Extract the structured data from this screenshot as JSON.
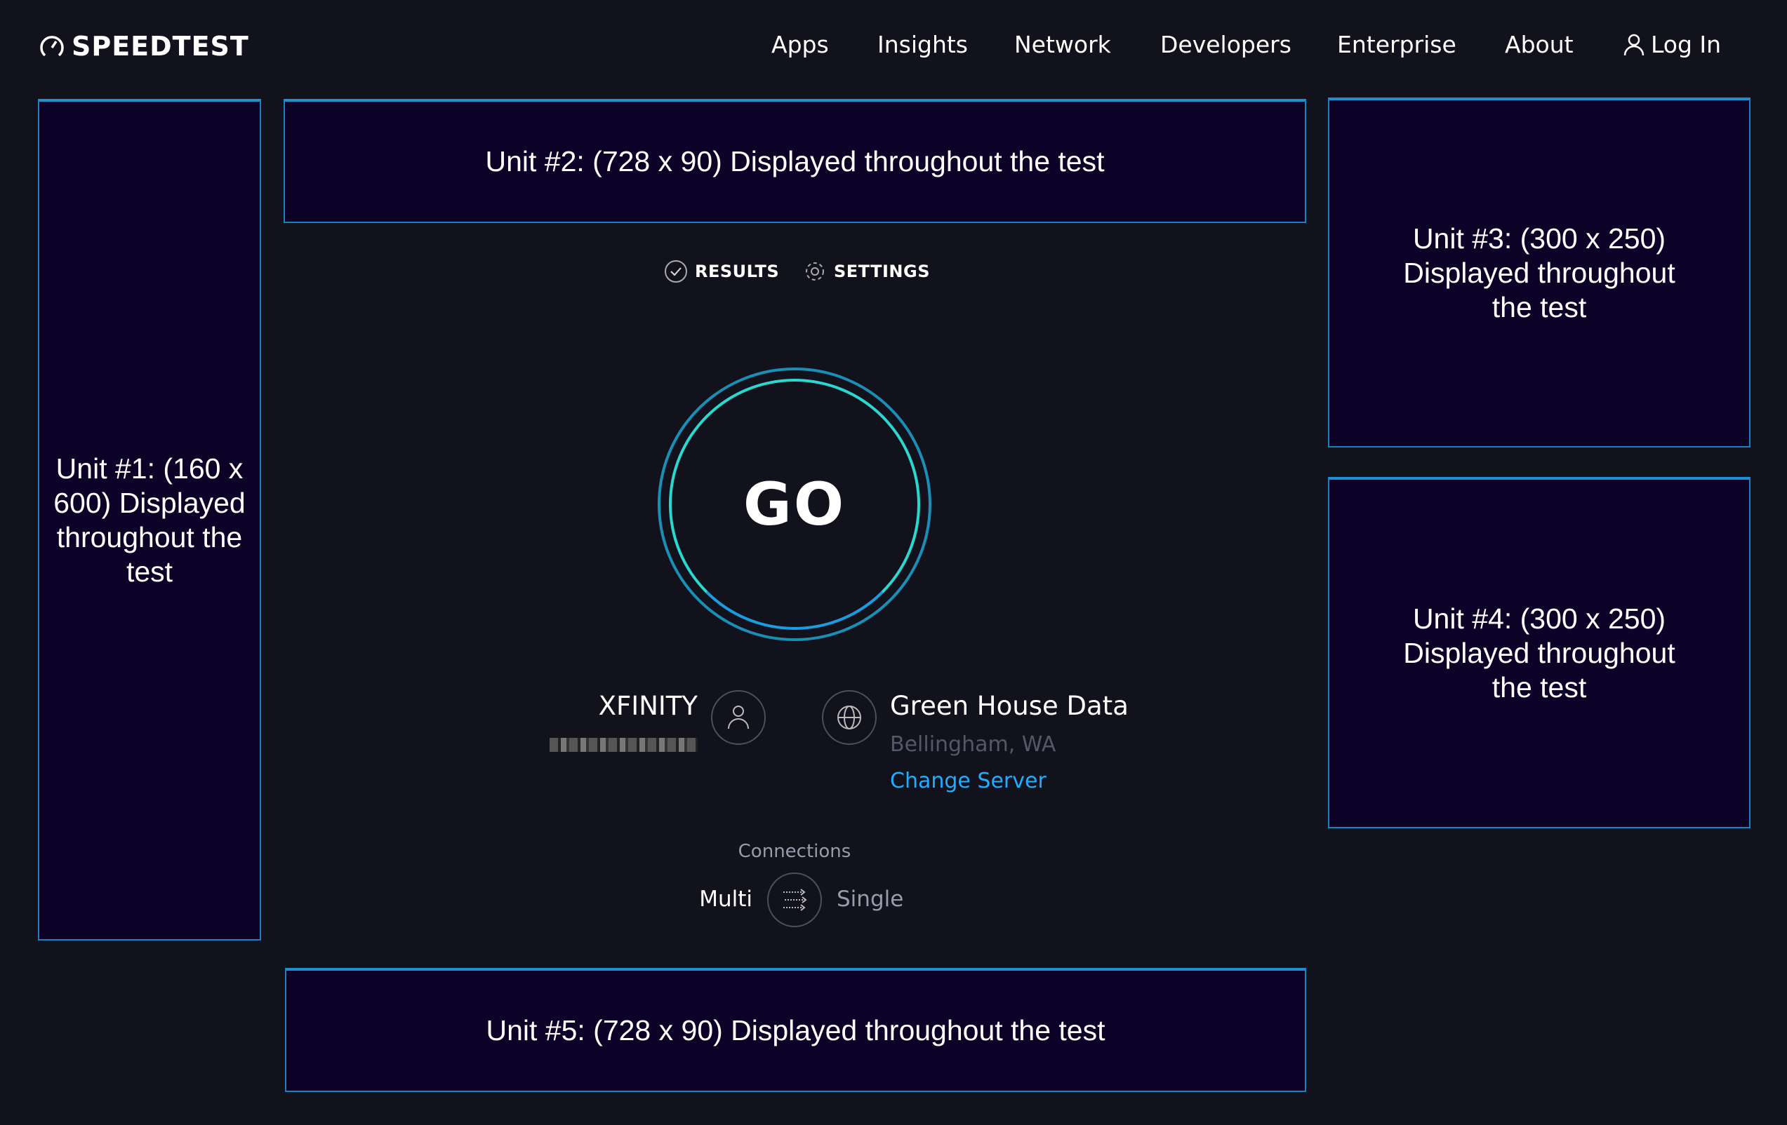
{
  "header": {
    "logo": "SPEEDTEST",
    "nav": [
      "Apps",
      "Insights",
      "Network",
      "Developers",
      "Enterprise",
      "About"
    ],
    "login": "Log In"
  },
  "ads": {
    "unit1": "Unit #1: (160 x 600) Displayed throughout the test",
    "unit2": "Unit #2: (728 x 90) Displayed throughout the test",
    "unit3": "Unit #3: (300 x 250) Displayed throughout the test",
    "unit4": "Unit #4: (300 x 250) Displayed throughout the test",
    "unit5": "Unit #5: (728 x 90) Displayed throughout the test"
  },
  "tabs": {
    "results": "RESULTS",
    "settings": "SETTINGS"
  },
  "go": "GO",
  "isp": {
    "name": "XFINITY"
  },
  "server": {
    "name": "Green House Data",
    "location": "Bellingham, WA",
    "change": "Change Server"
  },
  "connections": {
    "label": "Connections",
    "multi": "Multi",
    "single": "Single"
  },
  "colors": {
    "background": "#11121c",
    "ad_fill": "#0c0127",
    "ad_border": "#1b7fc0",
    "link": "#1fadff",
    "ring_outer": "#1a8fb5",
    "ring_inner": "#2ad8d0"
  }
}
